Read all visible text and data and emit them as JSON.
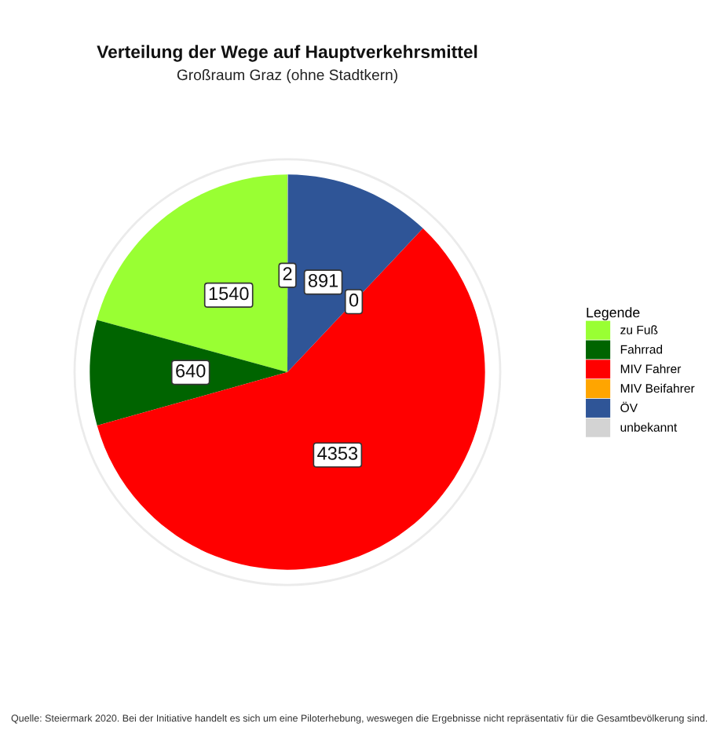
{
  "chart_data": {
    "type": "pie",
    "title": "Verteilung der Wege auf Hauptverkehrsmittel",
    "subtitle": "Großraum Graz (ohne Stadtkern)",
    "legend_title": "Legende",
    "categories": [
      "zu Fuß",
      "Fahrrad",
      "MIV Fahrer",
      "MIV Beifahrer",
      "ÖV",
      "unbekannt"
    ],
    "values": [
      1540,
      640,
      4353,
      0,
      891,
      2
    ],
    "value_labels": [
      "1540",
      "640",
      "4353",
      "0",
      "891",
      "2"
    ],
    "colors": [
      "#99ff33",
      "#006400",
      "#ff0000",
      "#ffa500",
      "#2f5597",
      "#d3d3d3"
    ],
    "legend": "right",
    "grid": true,
    "annotations": [
      "Quelle: Steiermark 2020. Bei der Initiative handelt es sich um eine Piloterhebung, weswegen die Ergebnisse nicht repräsentativ für die Gesamtbevölkerung sind."
    ]
  }
}
